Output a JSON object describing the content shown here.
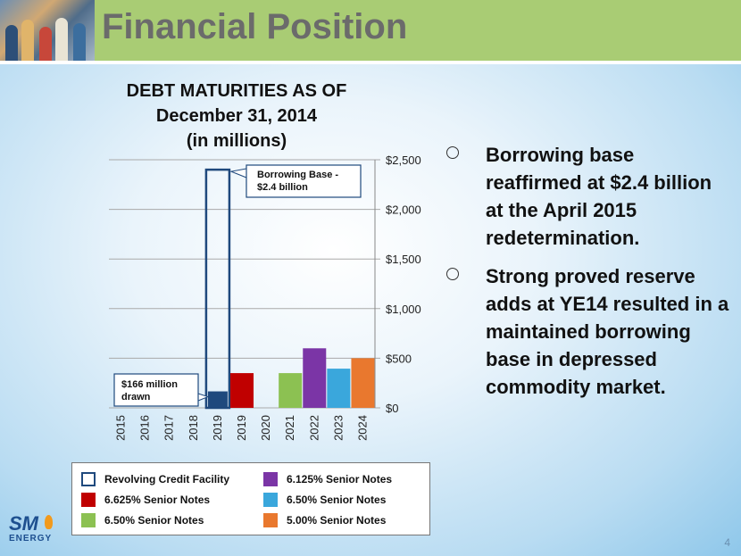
{
  "slide": {
    "title": "Financial Position",
    "page_number": "4"
  },
  "chart_title_lines": [
    "DEBT MATURITIES AS OF",
    "December 31, 2014",
    "(in millions)"
  ],
  "chart_data": {
    "type": "bar",
    "categories": [
      "2015",
      "2016",
      "2017",
      "2018",
      "2019",
      "2019",
      "2020",
      "2021",
      "2022",
      "2023",
      "2024"
    ],
    "series": [
      {
        "name": "Revolving Credit Facility",
        "color": "#1f497d",
        "outline_color": "#1f497d",
        "values": [
          0,
          0,
          0,
          0,
          166,
          0,
          0,
          0,
          0,
          0,
          0
        ],
        "capacity": [
          0,
          0,
          0,
          0,
          2400,
          0,
          0,
          0,
          0,
          0,
          0
        ]
      },
      {
        "name": "6.625% Senior Notes",
        "color": "#c00000",
        "values": [
          0,
          0,
          0,
          0,
          0,
          350,
          0,
          0,
          0,
          0,
          0
        ]
      },
      {
        "name": "6.50% Senior Notes",
        "color": "#8cc152",
        "values": [
          0,
          0,
          0,
          0,
          0,
          0,
          0,
          350,
          0,
          0,
          0
        ]
      },
      {
        "name": "6.125% Senior Notes",
        "color": "#7b35a6",
        "values": [
          0,
          0,
          0,
          0,
          0,
          0,
          0,
          0,
          600,
          0,
          0
        ]
      },
      {
        "name": "6.50% Senior Notes",
        "color": "#3aa7dc",
        "values": [
          0,
          0,
          0,
          0,
          0,
          0,
          0,
          0,
          0,
          395,
          0
        ]
      },
      {
        "name": "5.00% Senior Notes",
        "color": "#e9782e",
        "values": [
          0,
          0,
          0,
          0,
          0,
          0,
          0,
          0,
          0,
          0,
          500
        ]
      }
    ],
    "ylim": [
      0,
      2500
    ],
    "yticks": [
      0,
      500,
      1000,
      1500,
      2000,
      2500
    ],
    "ytick_labels": [
      "$0",
      "$500",
      "$1,000",
      "$1,500",
      "$2,000",
      "$2,500"
    ],
    "grid": true,
    "y_axis_side": "right",
    "legend_position": "bottom",
    "annotations": [
      {
        "lines": [
          "Borrowing Base -",
          "$2.4 billion"
        ]
      },
      {
        "lines": [
          "$166 million",
          "drawn"
        ]
      }
    ]
  },
  "legend_items": [
    {
      "label": "Revolving Credit Facility",
      "color": "#ffffff",
      "border": "#1f497d"
    },
    {
      "label": "6.625% Senior Notes",
      "color": "#c00000",
      "border": "#c00000"
    },
    {
      "label": "6.50% Senior Notes",
      "color": "#8cc152",
      "border": "#8cc152"
    },
    {
      "label": "6.125% Senior Notes",
      "color": "#7b35a6",
      "border": "#7b35a6"
    },
    {
      "label": "6.50% Senior Notes",
      "color": "#3aa7dc",
      "border": "#3aa7dc"
    },
    {
      "label": "5.00% Senior Notes",
      "color": "#e9782e",
      "border": "#e9782e"
    }
  ],
  "bullets": [
    "Borrowing base reaffirmed at $2.4 billion at the April 2015 redetermination.",
    "Strong proved reserve adds at  YE14 resulted in a maintained borrowing base in depressed commodity market."
  ],
  "logo": {
    "mark": "SM",
    "word": "ENERGY"
  }
}
